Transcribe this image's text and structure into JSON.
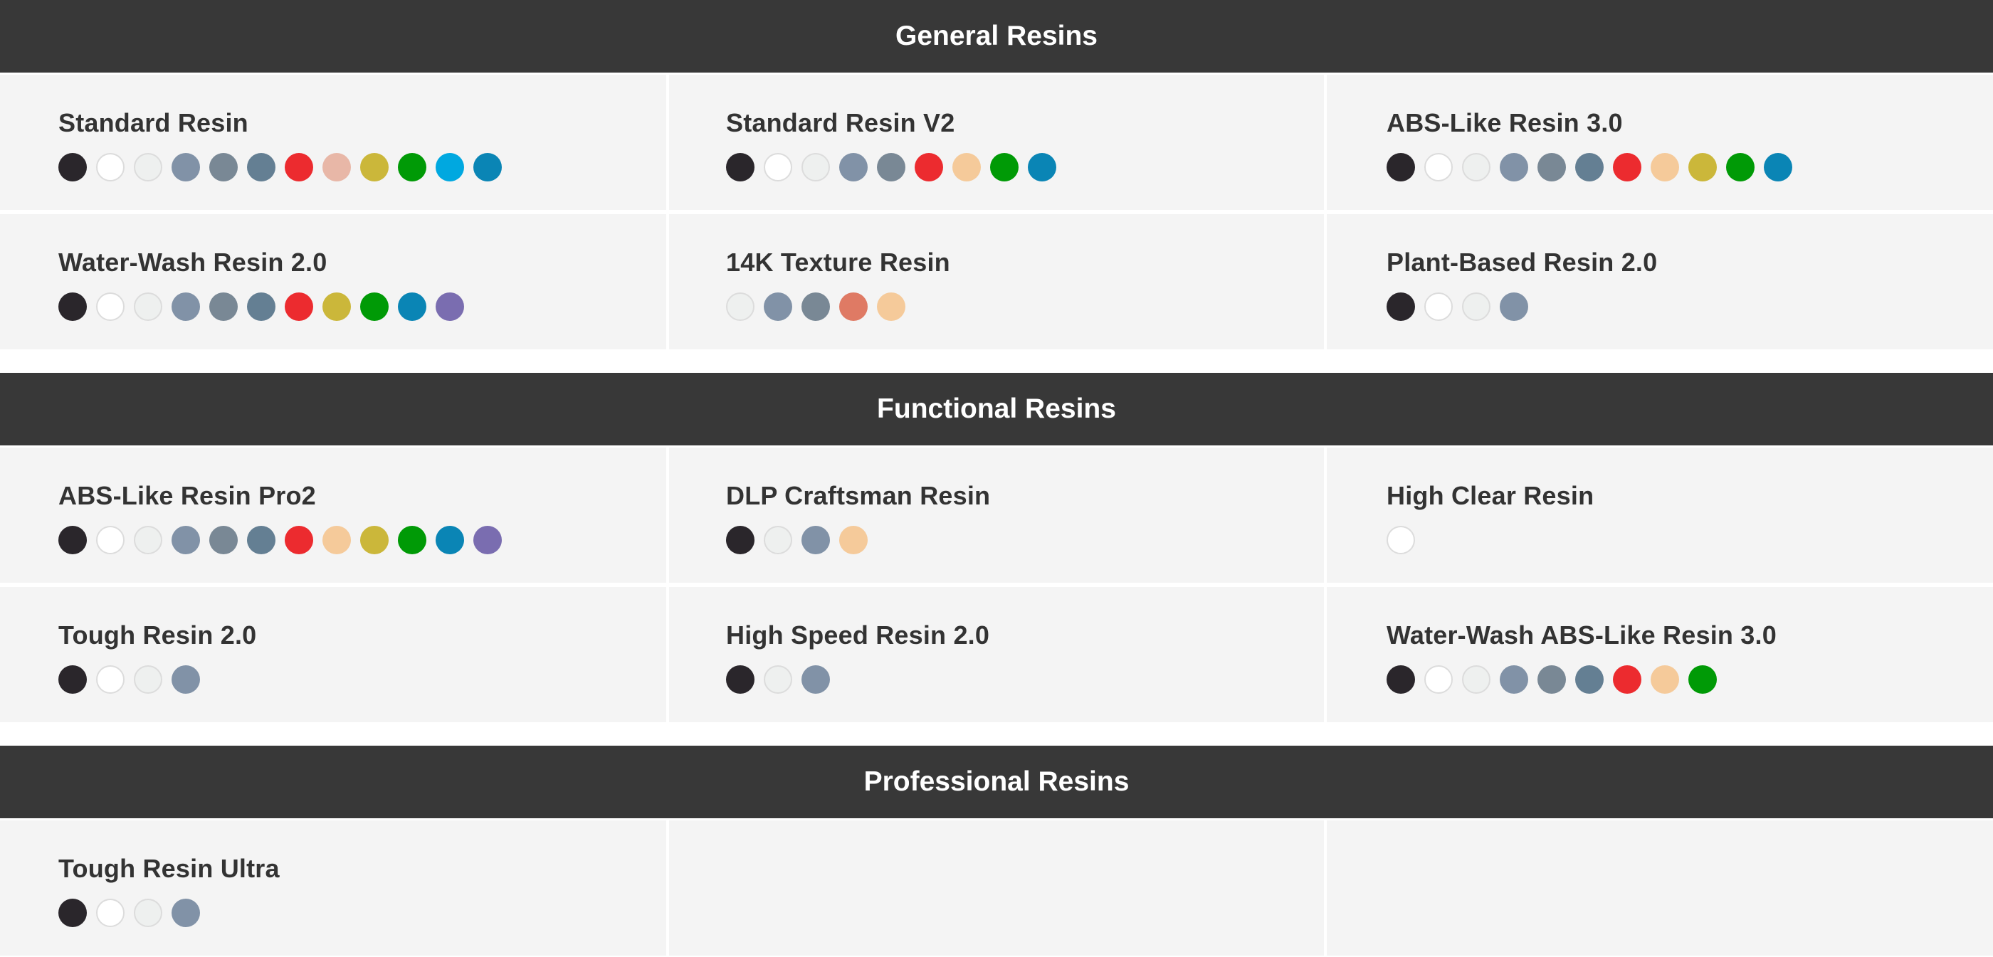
{
  "colors": {
    "black": "#2a262b",
    "white": "#ffffff",
    "clear": "#eef0ef",
    "grey_blue": "#8192a7",
    "grey": "#798895",
    "slate": "#647f93",
    "red": "#ec2b2f",
    "pink": "#e8b7a7",
    "yellow": "#cbb73a",
    "green": "#009a06",
    "cyan": "#00a8e0",
    "blue": "#0a85b5",
    "peach": "#f5ca9a",
    "purple": "#7a6db0",
    "terracotta": "#df7a64"
  },
  "sections": [
    {
      "title": "General Resins",
      "products": [
        {
          "name": "Standard Resin",
          "swatches": [
            "black",
            "white",
            "clear",
            "grey_blue",
            "grey",
            "slate",
            "red",
            "pink",
            "yellow",
            "green",
            "cyan",
            "blue"
          ]
        },
        {
          "name": "Standard Resin V2",
          "swatches": [
            "black",
            "white",
            "clear",
            "grey_blue",
            "grey",
            "red",
            "peach",
            "green",
            "blue"
          ]
        },
        {
          "name": "ABS-Like Resin 3.0",
          "swatches": [
            "black",
            "white",
            "clear",
            "grey_blue",
            "grey",
            "slate",
            "red",
            "peach",
            "yellow",
            "green",
            "blue"
          ]
        },
        {
          "name": "Water-Wash Resin 2.0",
          "swatches": [
            "black",
            "white",
            "clear",
            "grey_blue",
            "grey",
            "slate",
            "red",
            "yellow",
            "green",
            "blue",
            "purple"
          ]
        },
        {
          "name": "14K Texture Resin",
          "swatches": [
            "clear",
            "grey_blue",
            "grey",
            "terracotta",
            "peach"
          ]
        },
        {
          "name": "Plant-Based Resin 2.0",
          "swatches": [
            "black",
            "white",
            "clear",
            "grey_blue"
          ]
        }
      ]
    },
    {
      "title": "Functional Resins",
      "products": [
        {
          "name": "ABS-Like Resin Pro2",
          "swatches": [
            "black",
            "white",
            "clear",
            "grey_blue",
            "grey",
            "slate",
            "red",
            "peach",
            "yellow",
            "green",
            "blue",
            "purple"
          ]
        },
        {
          "name": "DLP Craftsman Resin",
          "swatches": [
            "black",
            "clear",
            "grey_blue",
            "peach"
          ]
        },
        {
          "name": "High Clear Resin",
          "swatches": [
            "white"
          ]
        },
        {
          "name": "Tough Resin 2.0",
          "swatches": [
            "black",
            "white",
            "clear",
            "grey_blue"
          ]
        },
        {
          "name": "High Speed Resin 2.0",
          "swatches": [
            "black",
            "clear",
            "grey_blue"
          ]
        },
        {
          "name": "Water-Wash ABS-Like Resin 3.0",
          "swatches": [
            "black",
            "white",
            "clear",
            "grey_blue",
            "grey",
            "slate",
            "red",
            "peach",
            "green"
          ]
        }
      ]
    },
    {
      "title": "Professional Resins",
      "products": [
        {
          "name": "Tough Resin Ultra",
          "swatches": [
            "black",
            "white",
            "clear",
            "grey_blue"
          ]
        },
        {
          "name": "",
          "swatches": []
        },
        {
          "name": "",
          "swatches": []
        }
      ]
    }
  ]
}
